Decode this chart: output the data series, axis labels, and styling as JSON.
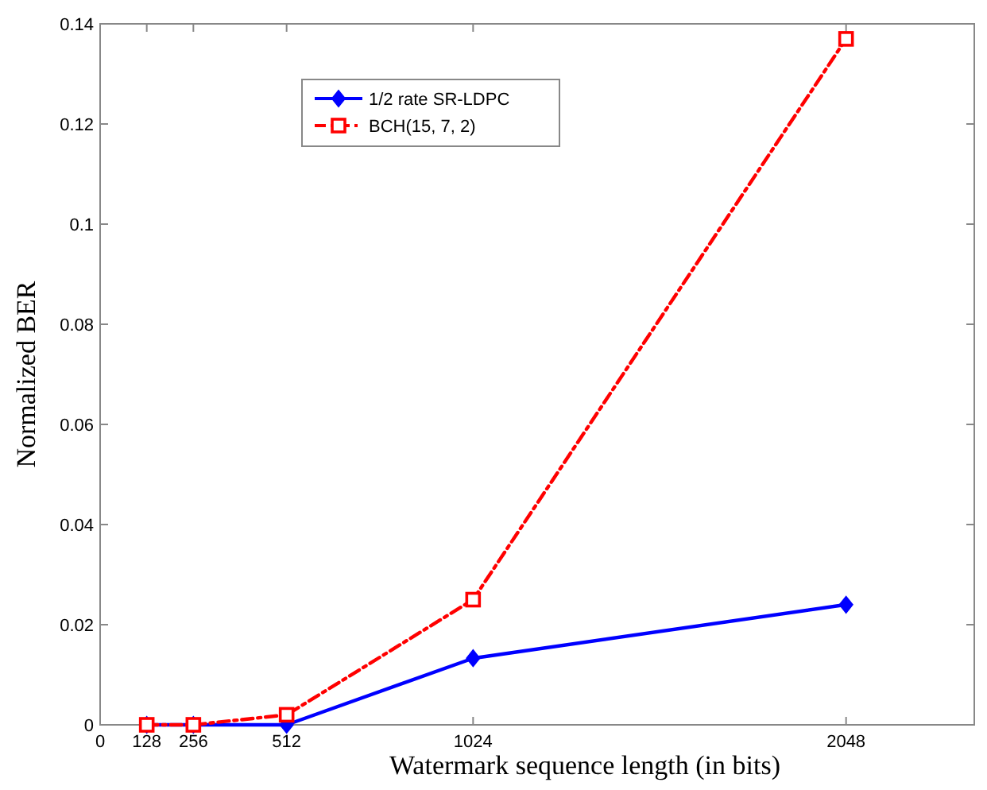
{
  "chart_data": {
    "type": "line",
    "xlabel": "Watermark sequence length (in bits)",
    "ylabel": "Normalized BER",
    "x": [
      128,
      256,
      512,
      1024,
      2048
    ],
    "series": [
      {
        "name": "1/2 rate SR-LDPC",
        "color": "#0000ff",
        "values": [
          0,
          0,
          0,
          0.0133,
          0.024
        ],
        "marker": "diamond",
        "line_style": "solid"
      },
      {
        "name": "BCH(15, 7, 2)",
        "color": "#ff0000",
        "values": [
          0,
          0,
          0.002,
          0.025,
          0.137
        ],
        "marker": "square",
        "line_style": "dashdot"
      }
    ],
    "xlim": [
      0,
      2400
    ],
    "xticks": [
      0,
      128,
      256,
      512,
      1024,
      2048
    ],
    "ylim": [
      0,
      0.14
    ],
    "yticks": [
      0,
      0.02,
      0.04,
      0.06,
      0.08,
      0.1,
      0.12,
      0.14
    ],
    "grid": false,
    "legend": "top left"
  }
}
